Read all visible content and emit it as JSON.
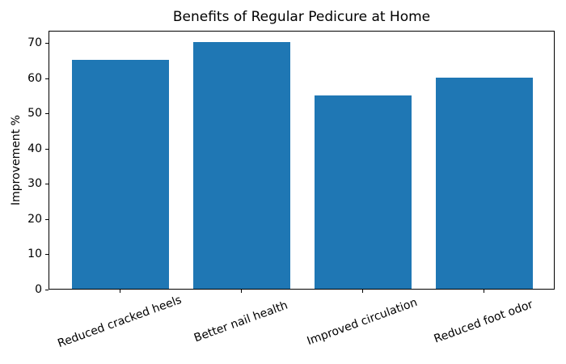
{
  "chart_data": {
    "type": "bar",
    "title": "Benefits of Regular Pedicure at Home",
    "categories": [
      "Reduced cracked heels",
      "Better nail health",
      "Improved circulation",
      "Reduced foot odor"
    ],
    "values": [
      65,
      70,
      55,
      60
    ],
    "xlabel": "",
    "ylabel": "Improvement %",
    "ylim": [
      0,
      73.5
    ],
    "yticks": [
      0,
      10,
      20,
      30,
      40,
      50,
      60,
      70
    ],
    "x_tick_rotation_deg": 20,
    "grid": false,
    "legend_position": "none",
    "bar_color": "#1f77b4",
    "text_color": "#000000",
    "background_color": "#ffffff"
  }
}
